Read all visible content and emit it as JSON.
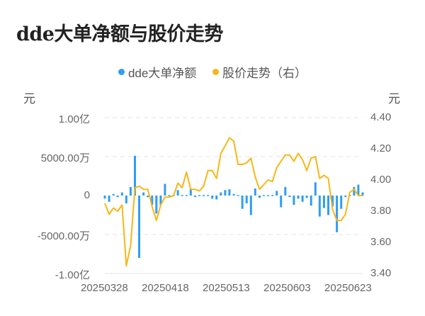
{
  "title": "dde大单净额与股价走势",
  "legend": [
    {
      "label": "dde大单净额",
      "color": "#2f9df4"
    },
    {
      "label": "股价走势（右）",
      "color": "#f7b718"
    }
  ],
  "axes": {
    "left_unit": "元",
    "right_unit": "元",
    "left_ticks": [
      "1.00亿",
      "5000.00万",
      "0",
      "-5000.00万",
      "-1.00亿"
    ],
    "right_ticks": [
      "4.40",
      "4.20",
      "4.00",
      "3.80",
      "3.60",
      "3.40"
    ],
    "x_ticks": [
      "20250328",
      "20250418",
      "20250513",
      "20250603",
      "20250623"
    ]
  },
  "chart_data": {
    "type": "bar+line",
    "title": "dde大单净额与股价走势",
    "xlabel": "",
    "ylabel_left": "元",
    "ylabel_right": "元",
    "ylim_left": [
      -100000000,
      100000000
    ],
    "ylim_right": [
      3.4,
      4.4
    ],
    "grid": true,
    "legend_position": "top",
    "x_tick_labels": [
      "20250328",
      "20250418",
      "20250513",
      "20250603",
      "20250623"
    ],
    "series": [
      {
        "name": "dde大单净额",
        "type": "bar",
        "axis": "left",
        "unit": "元",
        "values": [
          -4000000,
          -8000000,
          2000000,
          -2000000,
          4000000,
          -10000000,
          11000000,
          51000000,
          -80000000,
          4000000,
          -2000000,
          -12000000,
          -23000000,
          -12000000,
          15000000,
          1000000,
          0,
          7000000,
          -1000000,
          1000000,
          9000000,
          -2000000,
          0,
          -1000000,
          0,
          -4000000,
          -5000000,
          4000000,
          7000000,
          8000000,
          2000000,
          1000000,
          -17000000,
          -10000000,
          -25000000,
          9000000,
          -3000000,
          -1000000,
          1000000,
          -1000000,
          6000000,
          -15000000,
          11000000,
          -2000000,
          -12000000,
          -4000000,
          -8000000,
          -3000000,
          -13000000,
          17000000,
          -27000000,
          -16000000,
          -25000000,
          -14000000,
          -47000000,
          -17000000,
          -2000000,
          1000000,
          11000000,
          14000000,
          4000000
        ],
        "color": "#2f9df4"
      },
      {
        "name": "股价走势",
        "type": "line",
        "axis": "right",
        "unit": "元",
        "values": [
          3.85,
          3.78,
          3.82,
          3.8,
          3.84,
          3.45,
          3.58,
          3.95,
          3.96,
          3.94,
          3.94,
          3.83,
          3.74,
          3.84,
          3.89,
          3.89,
          3.9,
          3.98,
          3.95,
          4.05,
          3.94,
          3.94,
          3.93,
          3.96,
          4.06,
          4.06,
          4.01,
          4.17,
          4.22,
          4.27,
          4.25,
          4.1,
          4.1,
          4.11,
          4.14,
          4.02,
          3.94,
          3.97,
          4.0,
          3.99,
          4.08,
          4.12,
          4.16,
          4.16,
          4.12,
          4.17,
          4.13,
          4.06,
          4.14,
          4.15,
          4.01,
          4.03,
          4.01,
          3.81,
          3.74,
          3.74,
          3.78,
          3.92,
          3.94,
          3.9,
          3.9
        ],
        "color": "#f7b718"
      }
    ]
  }
}
